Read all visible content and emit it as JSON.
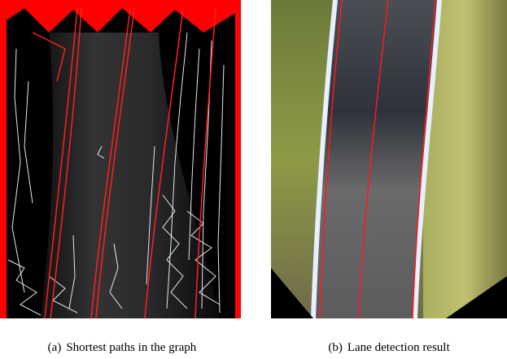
{
  "figure": {
    "subfigures": [
      {
        "label": "(a)",
        "caption": "Shortest paths in the graph"
      },
      {
        "label": "(b)",
        "caption": "Lane detection result"
      }
    ]
  }
}
